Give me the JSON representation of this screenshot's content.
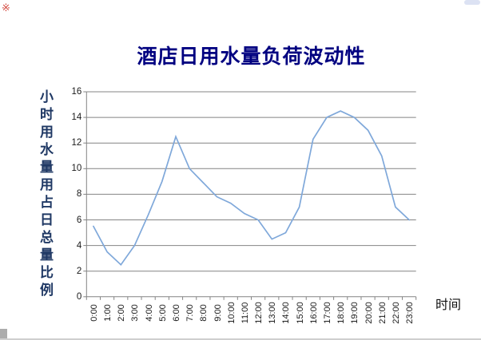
{
  "page": {
    "title": "酒店日用水量负荷波动性"
  },
  "chart_data": {
    "type": "line",
    "title": "酒店日用水量负荷波动性",
    "categories": [
      "0:00",
      "1:00",
      "2:00",
      "3:00",
      "4:00",
      "5:00",
      "6:00",
      "7:00",
      "8:00",
      "9:00",
      "10:00",
      "11:00",
      "12:00",
      "13:00",
      "14:00",
      "15:00",
      "16:00",
      "17:00",
      "18:00",
      "19:00",
      "20:00",
      "21:00",
      "22:00",
      "23:00"
    ],
    "values": [
      5.5,
      3.5,
      2.5,
      4,
      6.4,
      9,
      12.5,
      10,
      8.9,
      7.8,
      7.3,
      6.5,
      6,
      4.5,
      5,
      7,
      12.3,
      14,
      14.5,
      14,
      13,
      11,
      7,
      6
    ],
    "xlabel": "时间",
    "ylabel": "小时用水量用占日总量比例",
    "ylim": [
      0,
      16
    ],
    "yticks": [
      0,
      2,
      4,
      6,
      8,
      10,
      12,
      14,
      16
    ],
    "grid": "horizontal",
    "legend": "none",
    "colors": {
      "line": "#7FA8DA",
      "grid": "#848484",
      "axis": "#848484",
      "title": "#000080",
      "axis_title": "#1F3864",
      "tick_labels": "#1a1a1a"
    }
  },
  "decorations": {
    "stamp": "※"
  }
}
